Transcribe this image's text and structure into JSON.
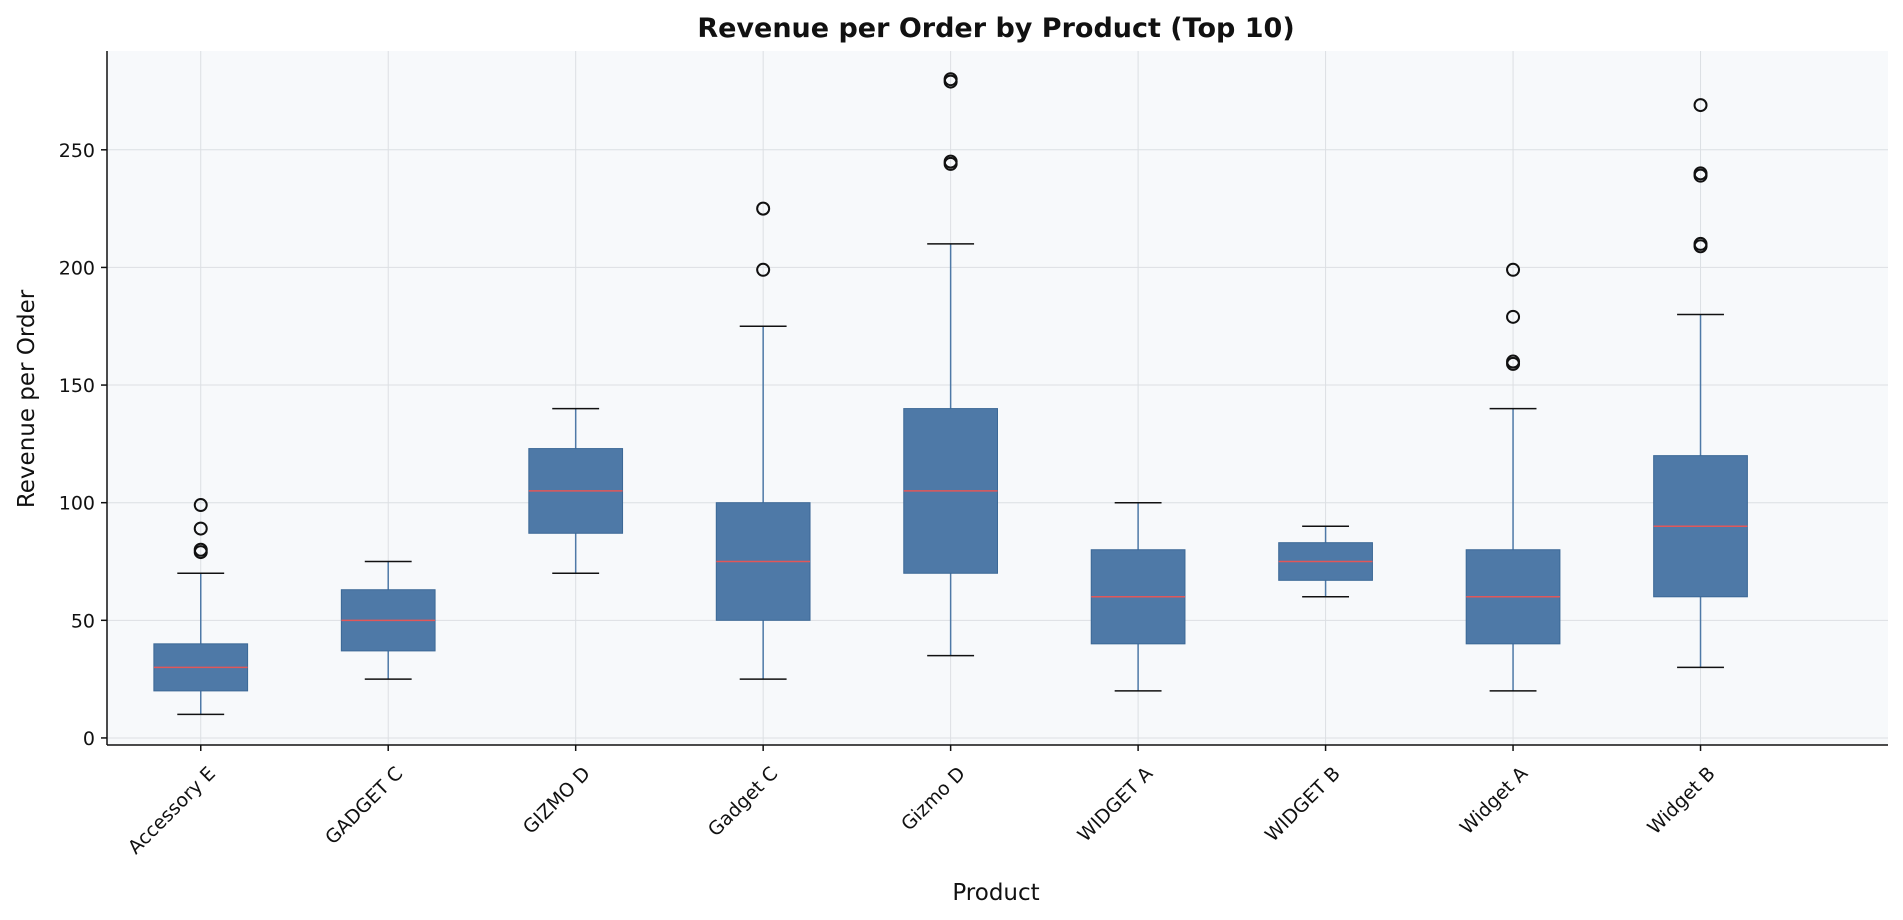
{
  "chart_data": {
    "type": "boxplot",
    "title": "Revenue per Order by Product (Top 10)",
    "xlabel": "Product",
    "ylabel": "Revenue per Order",
    "ylim": [
      -3,
      292
    ],
    "yticks": [
      0,
      50,
      100,
      150,
      200,
      250
    ],
    "grid": true,
    "colors": {
      "box": "#4e79a7",
      "median": "#e15759",
      "plot_bg": "#f7f9fb",
      "grid": "#dcdfe3",
      "whisker": "#4e79a7",
      "cap": "#111111",
      "flier": "#111111"
    },
    "boxes": [
      {
        "name": "Accessory E",
        "whisker_low": 10,
        "q1": 20,
        "median": 30,
        "q3": 40,
        "whisker_high": 70,
        "outliers": [
          79,
          80,
          89,
          99
        ]
      },
      {
        "name": "GADGET C",
        "whisker_low": 25,
        "q1": 37,
        "median": 50,
        "q3": 63,
        "whisker_high": 75,
        "outliers": []
      },
      {
        "name": "GIZMO D",
        "whisker_low": 70,
        "q1": 87,
        "median": 105,
        "q3": 123,
        "whisker_high": 140,
        "outliers": []
      },
      {
        "name": "Gadget C",
        "whisker_low": 25,
        "q1": 50,
        "median": 75,
        "q3": 100,
        "whisker_high": 175,
        "outliers": [
          199,
          225
        ]
      },
      {
        "name": "Gizmo D",
        "whisker_low": 35,
        "q1": 70,
        "median": 105,
        "q3": 140,
        "whisker_high": 210,
        "outliers": [
          244,
          245,
          279,
          280
        ]
      },
      {
        "name": "WIDGET A",
        "whisker_low": 20,
        "q1": 40,
        "median": 60,
        "q3": 80,
        "whisker_high": 100,
        "outliers": []
      },
      {
        "name": "WIDGET B",
        "whisker_low": 60,
        "q1": 67,
        "median": 75,
        "q3": 83,
        "whisker_high": 90,
        "outliers": []
      },
      {
        "name": "Widget A",
        "whisker_low": 20,
        "q1": 40,
        "median": 60,
        "q3": 80,
        "whisker_high": 140,
        "outliers": [
          159,
          160,
          179,
          199
        ]
      },
      {
        "name": "Widget B",
        "whisker_low": 30,
        "q1": 60,
        "median": 90,
        "q3": 120,
        "whisker_high": 180,
        "outliers": [
          209,
          210,
          239,
          240,
          269
        ]
      }
    ]
  }
}
